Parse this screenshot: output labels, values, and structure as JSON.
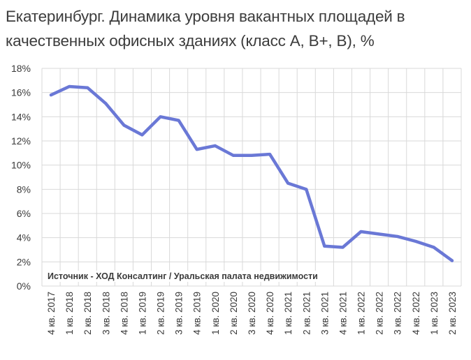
{
  "chart_data": {
    "type": "line",
    "title": "Екатеринбург. Динамика уровня вакантных площадей в качественных офисных зданиях (класс A, B+, B), %",
    "categories": [
      "4 кв. 2017",
      "1 кв. 2018",
      "2 кв. 2018",
      "3 кв. 2018",
      "4 кв. 2018",
      "1 кв. 2019",
      "2 кв. 2019",
      "3 кв. 2019",
      "4 кв. 2019",
      "1 кв. 2020",
      "2 кв. 2020",
      "3 кв. 2020",
      "4 кв. 2020",
      "1 кв. 2021",
      "2 кв. 2021",
      "3 кв. 2021",
      "4 кв. 2021",
      "1 кв. 2022",
      "2 кв. 2022",
      "3 кв. 2022",
      "4 кв. 2022",
      "1 кв. 2023",
      "2 кв. 2023"
    ],
    "series": [
      {
        "values": [
          15.8,
          16.5,
          16.4,
          15.1,
          13.3,
          12.5,
          14.0,
          13.7,
          11.3,
          11.6,
          10.8,
          10.8,
          10.9,
          8.5,
          8.0,
          3.3,
          3.2,
          4.5,
          4.3,
          4.1,
          3.7,
          3.2,
          2.1
        ]
      }
    ],
    "y_ticks": [
      "0%",
      "2%",
      "4%",
      "6%",
      "8%",
      "10%",
      "12%",
      "14%",
      "16%",
      "18%"
    ],
    "ylim": [
      0,
      18
    ],
    "grid": true,
    "line_color": "#6A78D6",
    "annotation": "Источник - ХОД Консалтинг / Уральская палата недвижимости"
  }
}
